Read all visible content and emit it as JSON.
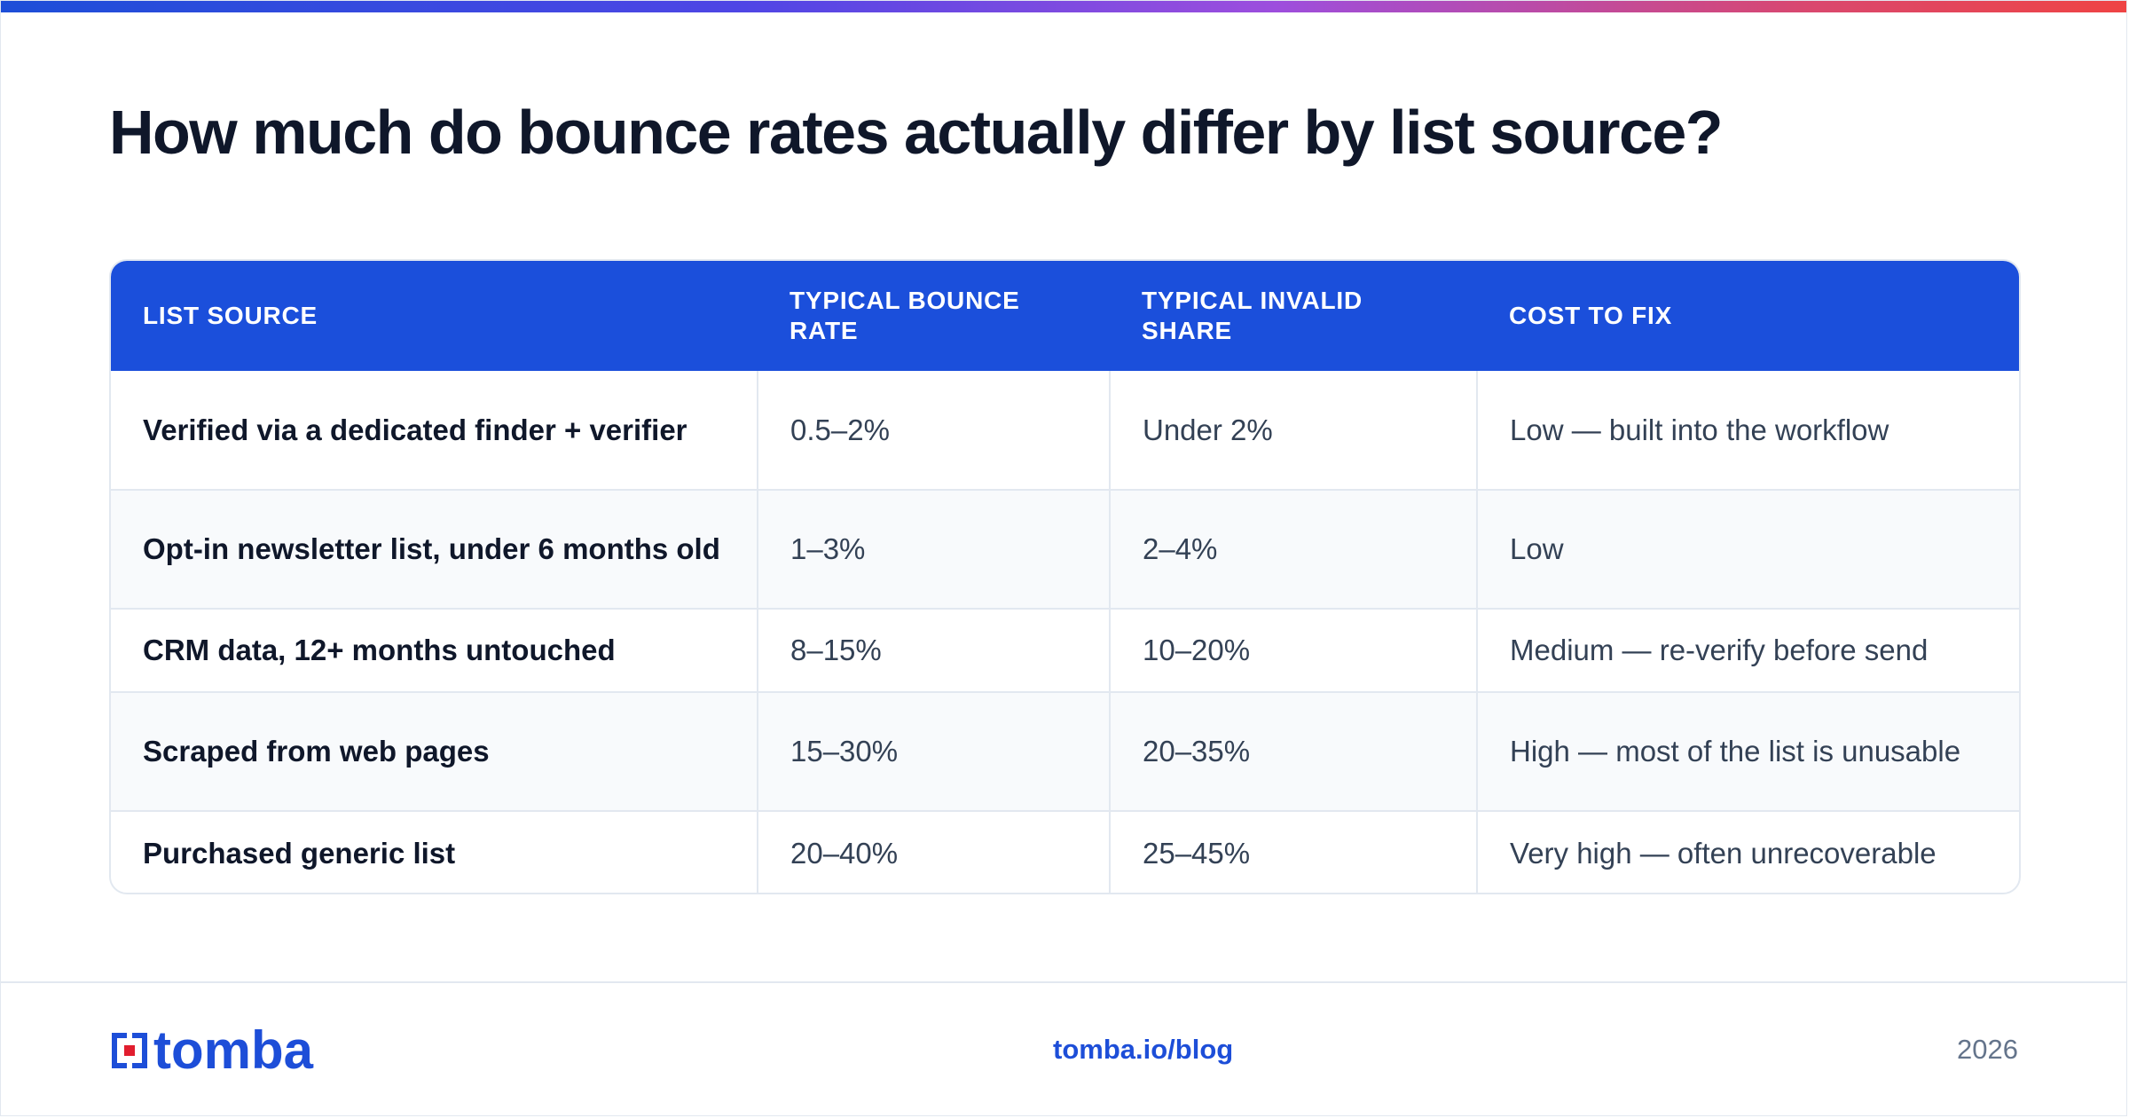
{
  "header": {
    "title": "How much do bounce rates actually differ by list source?"
  },
  "table": {
    "columns": [
      "LIST SOURCE",
      "TYPICAL BOUNCE RATE",
      "TYPICAL INVALID SHARE",
      "COST TO FIX"
    ],
    "rows": [
      {
        "source": "Verified via a dedicated finder + verifier",
        "bounce_rate": "0.5–2%",
        "invalid_share": "Under 2%",
        "cost_to_fix": "Low — built into the workflow"
      },
      {
        "source": "Opt-in newsletter list, under 6 months old",
        "bounce_rate": "1–3%",
        "invalid_share": "2–4%",
        "cost_to_fix": "Low"
      },
      {
        "source": "CRM data, 12+ months untouched",
        "bounce_rate": "8–15%",
        "invalid_share": "10–20%",
        "cost_to_fix": "Medium — re-verify before send"
      },
      {
        "source": "Scraped from web pages",
        "bounce_rate": "15–30%",
        "invalid_share": "20–35%",
        "cost_to_fix": "High — most of the list is unusable"
      },
      {
        "source": "Purchased generic list",
        "bounce_rate": "20–40%",
        "invalid_share": "25–45%",
        "cost_to_fix": "Very high — often unrecoverable"
      }
    ]
  },
  "footer": {
    "logo_text": "tomba",
    "url": "tomba.io/blog",
    "year": "2026"
  },
  "colors": {
    "accent": "#1b4fdb",
    "title": "#0f172a",
    "body_text": "#334155",
    "border": "#e2e8f0",
    "logo_red": "#e11d2e"
  },
  "icons": {
    "logo": "tomba-logo-icon"
  }
}
